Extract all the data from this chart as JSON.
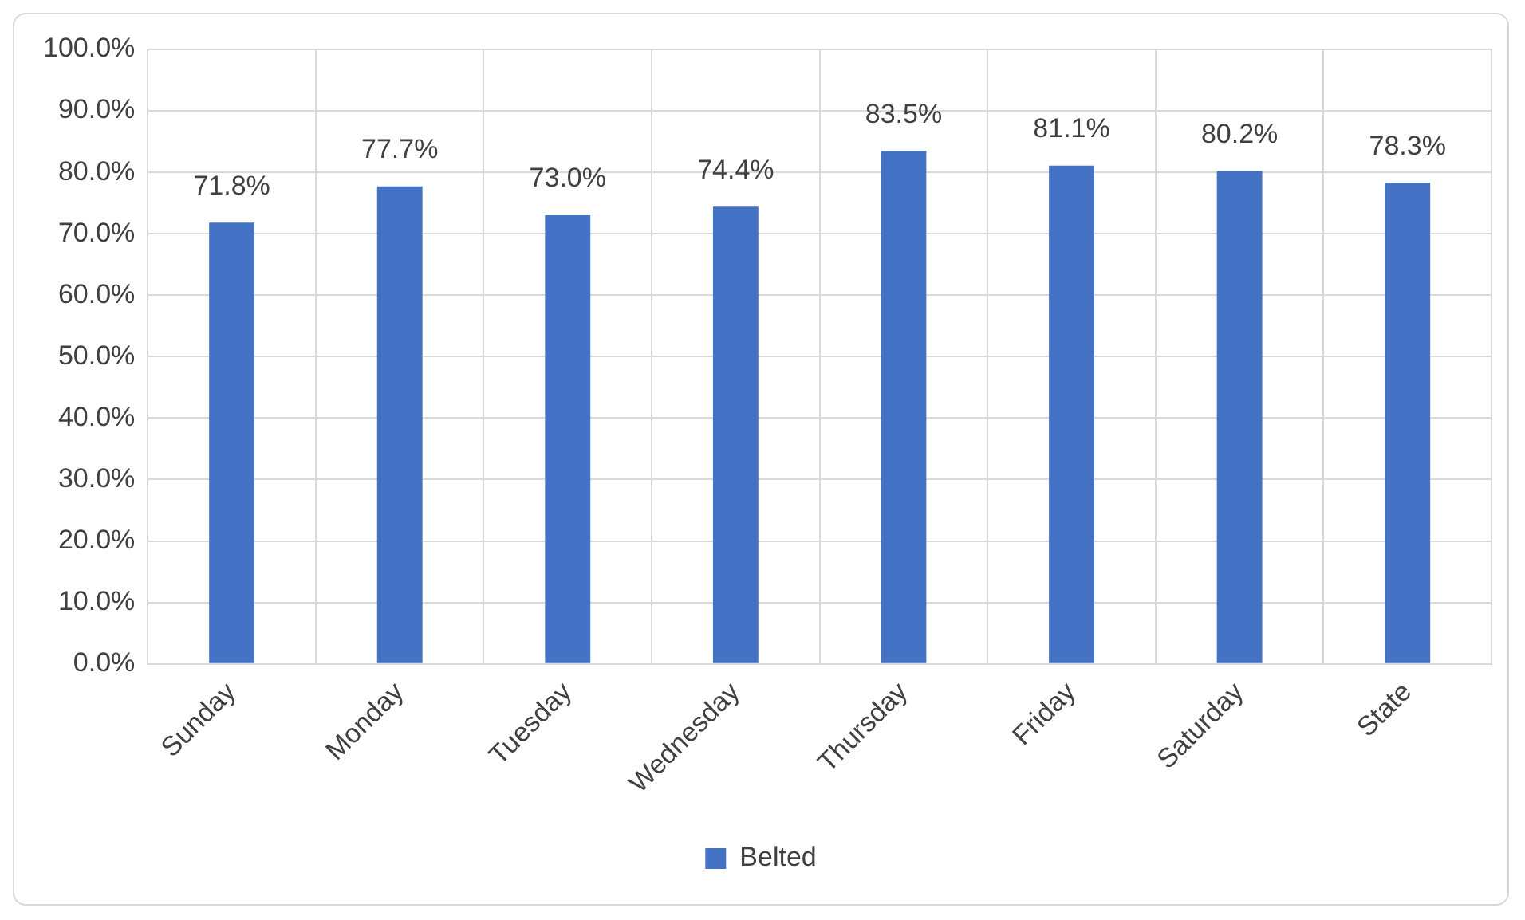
{
  "chart_data": {
    "type": "bar",
    "categories": [
      "Sunday",
      "Monday",
      "Tuesday",
      "Wednesday",
      "Thursday",
      "Friday",
      "Saturday",
      "State"
    ],
    "series": [
      {
        "name": "Belted",
        "color": "#4472c4",
        "values": [
          71.8,
          77.7,
          73.0,
          74.4,
          83.5,
          81.1,
          80.2,
          78.3
        ],
        "value_labels": [
          "71.8%",
          "77.7%",
          "73.0%",
          "74.4%",
          "83.5%",
          "81.1%",
          "80.2%",
          "78.3%"
        ]
      }
    ],
    "ylim": [
      0,
      100
    ],
    "yticks": [
      {
        "value": 0,
        "label": "0.0%"
      },
      {
        "value": 10,
        "label": "10.0%"
      },
      {
        "value": 20,
        "label": "20.0%"
      },
      {
        "value": 30,
        "label": "30.0%"
      },
      {
        "value": 40,
        "label": "40.0%"
      },
      {
        "value": 50,
        "label": "50.0%"
      },
      {
        "value": 60,
        "label": "60.0%"
      },
      {
        "value": 70,
        "label": "70.0%"
      },
      {
        "value": 80,
        "label": "80.0%"
      },
      {
        "value": 90,
        "label": "90.0%"
      },
      {
        "value": 100,
        "label": "100.0%"
      }
    ],
    "grid": true,
    "legend": "bottom"
  }
}
